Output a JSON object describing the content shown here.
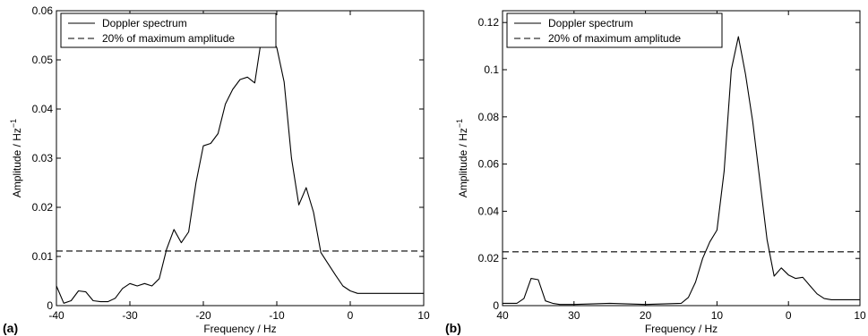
{
  "chart_data": [
    {
      "type": "line",
      "panel_label": "(a)",
      "xlabel": "Frequency / Hz",
      "ylabel": "Amplitude / Hz",
      "ylabel_exponent": "−1",
      "xlim": [
        -40,
        10
      ],
      "ylim": [
        0,
        0.06
      ],
      "x_reversed": false,
      "xticks": [
        -40,
        -30,
        -20,
        -10,
        0,
        10
      ],
      "xtick_labels": [
        "-40",
        "-30",
        "-20",
        "-10",
        "0",
        "10"
      ],
      "yticks": [
        0,
        0.01,
        0.02,
        0.03,
        0.04,
        0.05,
        0.06
      ],
      "ytick_labels": [
        "0",
        "0.01",
        "0.02",
        "0.03",
        "0.04",
        "0.05",
        "0.06"
      ],
      "legend": {
        "placement": "top-left",
        "entries": [
          {
            "label": "Doppler spectrum",
            "style": "solid"
          },
          {
            "label": "20% of maximum amplitude",
            "style": "dashed"
          }
        ]
      },
      "series": [
        {
          "name": "Doppler spectrum",
          "style": "solid",
          "x": [
            -40,
            -39,
            -38,
            -37,
            -36,
            -35,
            -34,
            -33,
            -32,
            -31,
            -30,
            -29,
            -28,
            -27,
            -26,
            -25,
            -24,
            -23,
            -22,
            -21,
            -20,
            -19,
            -18,
            -17,
            -16,
            -15,
            -14,
            -13,
            -12,
            -11,
            -10,
            -9,
            -8,
            -7,
            -6,
            -5,
            -4,
            -3,
            -2,
            -1,
            0,
            1,
            2,
            3,
            4,
            5,
            6,
            7,
            8,
            9,
            10
          ],
          "y": [
            0.004,
            0.0005,
            0.001,
            0.003,
            0.0028,
            0.001,
            0.0008,
            0.0008,
            0.0015,
            0.0035,
            0.0045,
            0.004,
            0.0045,
            0.004,
            0.0055,
            0.0115,
            0.0155,
            0.0128,
            0.015,
            0.025,
            0.0325,
            0.033,
            0.035,
            0.041,
            0.044,
            0.046,
            0.0465,
            0.0453,
            0.0552,
            0.0552,
            0.0525,
            0.0455,
            0.03,
            0.0205,
            0.024,
            0.019,
            0.0108,
            0.0085,
            0.0062,
            0.004,
            0.003,
            0.0025,
            0.0025,
            0.0025,
            0.0025,
            0.0025,
            0.0025,
            0.0025,
            0.0025,
            0.0025,
            0.0025
          ]
        },
        {
          "name": "20% of maximum amplitude",
          "style": "dashed",
          "x": [
            -40,
            10
          ],
          "y": [
            0.0111,
            0.0111
          ]
        }
      ]
    },
    {
      "type": "line",
      "panel_label": "(b)",
      "xlabel": "Frequency / Hz",
      "ylabel": "Amplitude / Hz",
      "ylabel_exponent": "−1",
      "xlim": [
        40,
        -10
      ],
      "ylim": [
        0,
        0.125
      ],
      "x_reversed": true,
      "xticks": [
        40,
        30,
        20,
        10,
        0,
        -10
      ],
      "xtick_labels": [
        "40",
        "30",
        "20",
        "10",
        "0",
        "10"
      ],
      "yticks": [
        0,
        0.02,
        0.04,
        0.06,
        0.08,
        0.1,
        0.12
      ],
      "ytick_labels": [
        "0",
        "0.02",
        "0.04",
        "0.06",
        "0.08",
        "0.1",
        "0.12"
      ],
      "legend": {
        "placement": "top-left",
        "entries": [
          {
            "label": "Doppler spectrum",
            "style": "solid"
          },
          {
            "label": "20% of maximum amplitude",
            "style": "dashed"
          }
        ]
      },
      "series": [
        {
          "name": "Doppler spectrum",
          "style": "solid",
          "x": [
            40,
            38,
            37,
            36,
            35,
            34,
            33,
            32,
            30,
            25,
            20,
            15,
            14,
            13,
            12,
            11,
            10,
            9,
            8,
            7,
            6,
            5,
            4,
            3,
            2,
            1,
            0,
            -1,
            -2,
            -3,
            -4,
            -5,
            -6,
            -7,
            -8,
            -9,
            -10
          ],
          "y": [
            0.001,
            0.001,
            0.003,
            0.0115,
            0.011,
            0.002,
            0.001,
            0.0005,
            0.0005,
            0.001,
            0.0005,
            0.001,
            0.0035,
            0.01,
            0.02,
            0.027,
            0.032,
            0.057,
            0.1,
            0.114,
            0.098,
            0.078,
            0.053,
            0.028,
            0.0125,
            0.016,
            0.013,
            0.0115,
            0.012,
            0.0085,
            0.005,
            0.003,
            0.0025,
            0.0025,
            0.0025,
            0.0025,
            0.0025
          ]
        },
        {
          "name": "20% of maximum amplitude",
          "style": "dashed",
          "x": [
            40,
            -10
          ],
          "y": [
            0.0228,
            0.0228
          ]
        }
      ]
    }
  ]
}
